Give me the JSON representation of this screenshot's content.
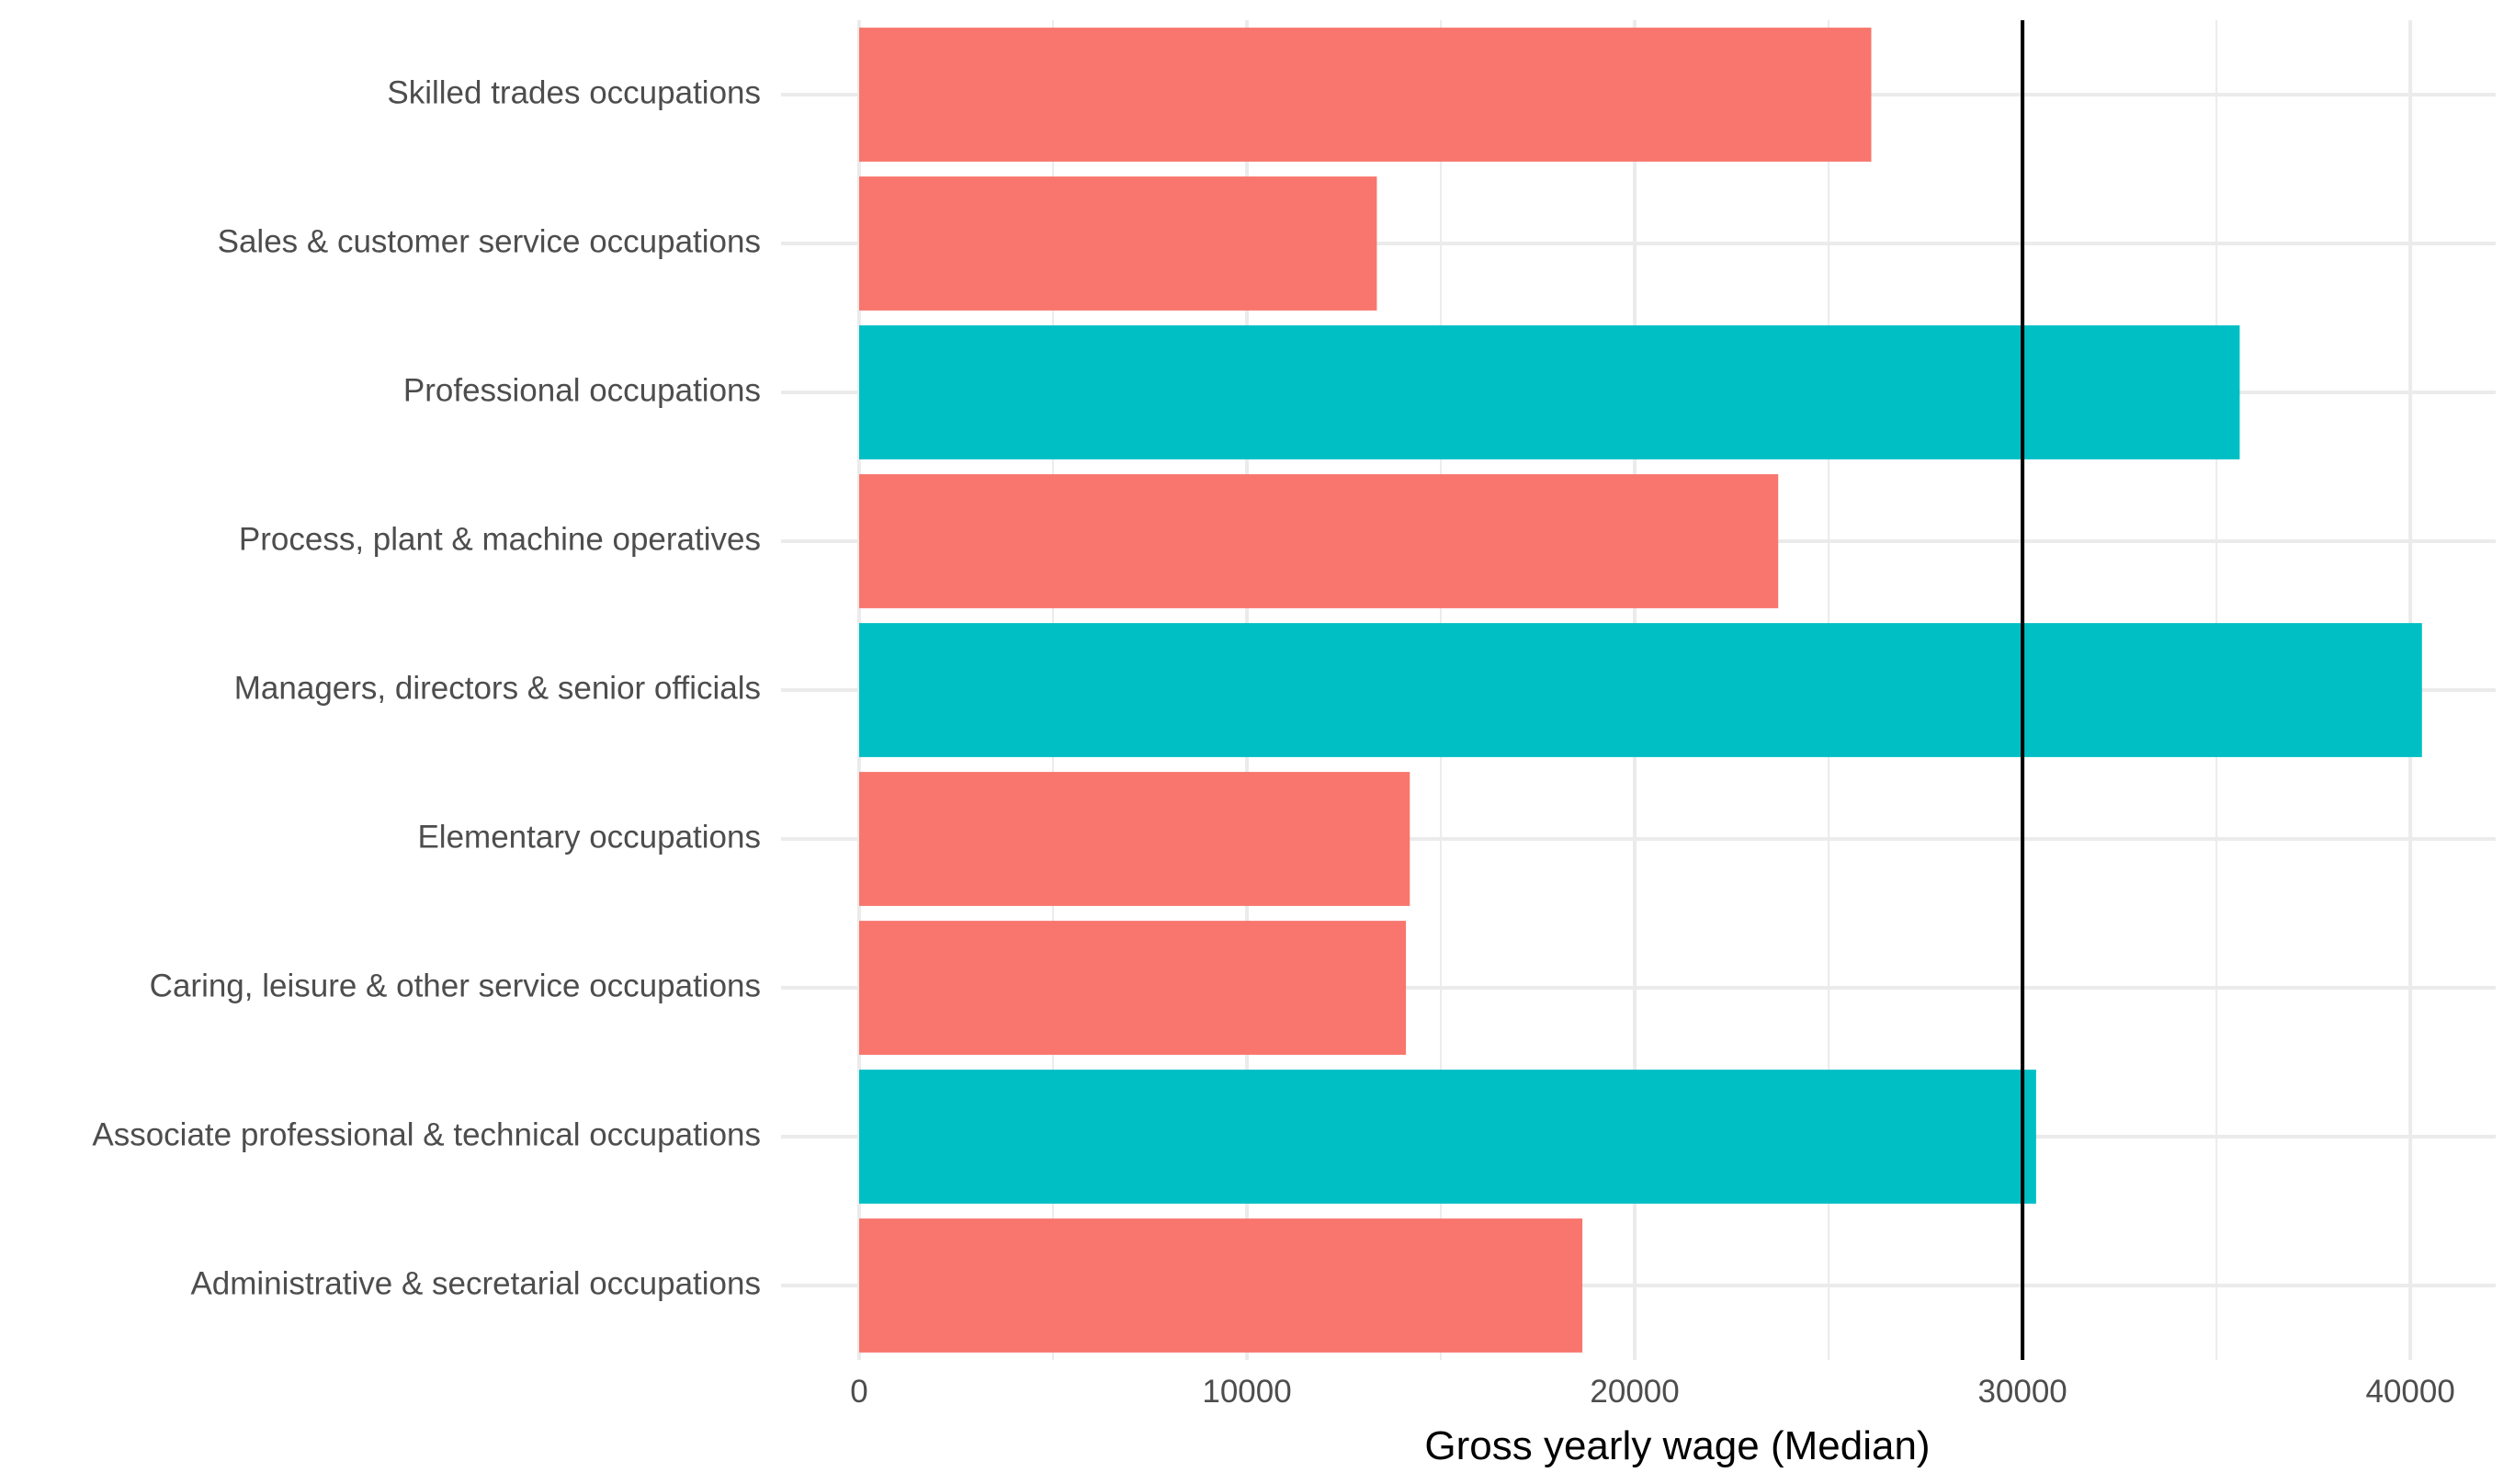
{
  "chart_data": {
    "type": "bar",
    "orientation": "horizontal",
    "categories": [
      "Skilled trades occupations",
      "Sales & customer service occupations",
      "Professional occupations",
      "Process, plant & machine operatives",
      "Managers, directors & senior officials",
      "Elementary occupations",
      "Caring, leisure & other service occupations",
      "Associate professional & technical occupations",
      "Administrative & secretarial occupations"
    ],
    "values": [
      26100,
      13350,
      35600,
      23700,
      40300,
      14200,
      14100,
      30350,
      18650
    ],
    "bar_colors": [
      "#F8766D",
      "#F8766D",
      "#00BFC4",
      "#F8766D",
      "#00BFC4",
      "#F8766D",
      "#F8766D",
      "#00BFC4",
      "#F8766D"
    ],
    "xlabel": "Gross yearly wage (Median)",
    "ylabel": "",
    "xlim": [
      0,
      42200
    ],
    "x_ticks": [
      0,
      10000,
      20000,
      30000,
      40000
    ],
    "x_minor_ticks": [
      5000,
      15000,
      25000,
      35000
    ],
    "reference_line": {
      "x": 30000,
      "color": "#000000"
    },
    "grid": true,
    "legend": "none",
    "colors": {
      "low": "#F8766D",
      "high": "#00BFC4",
      "grid": "#EBEBEB",
      "reference_line": "#000000"
    }
  }
}
